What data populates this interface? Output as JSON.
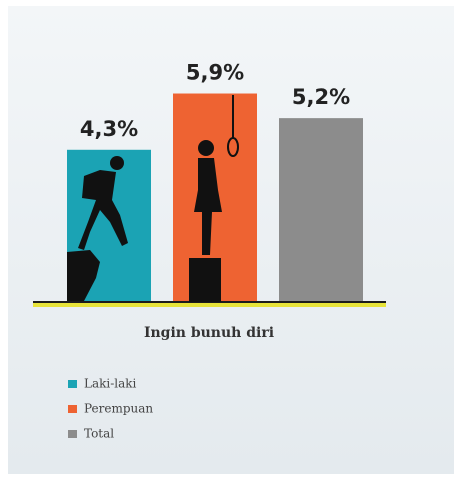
{
  "chart_data": {
    "type": "bar",
    "categories": [
      "Ingin bunuh diri"
    ],
    "series": [
      {
        "name": "Laki-laki",
        "color": "#1ba3b4",
        "values": [
          4.3
        ],
        "value_labels": [
          "4,3%"
        ]
      },
      {
        "name": "Perempuan",
        "color": "#ee6332",
        "values": [
          5.9
        ],
        "value_labels": [
          "5,9%"
        ]
      },
      {
        "name": "Total",
        "color": "#8c8c8c",
        "values": [
          5.2
        ],
        "value_labels": [
          "5,2%"
        ]
      }
    ],
    "ylim": [
      0,
      6
    ],
    "legend": "bottom-left"
  }
}
